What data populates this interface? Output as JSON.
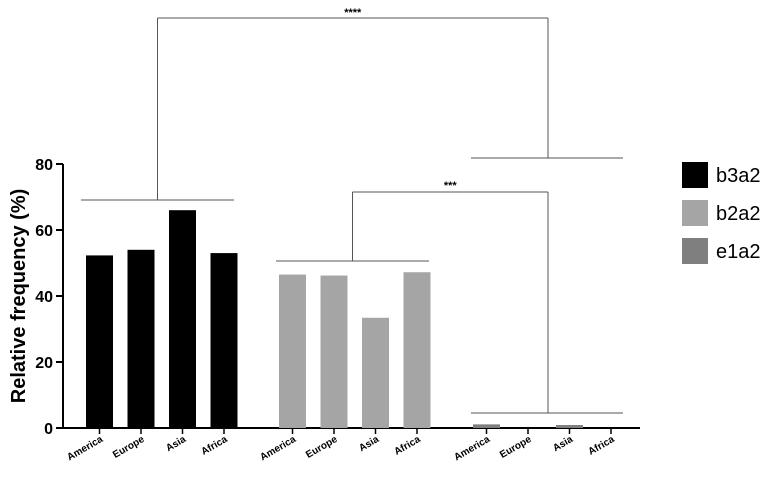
{
  "chart_data": {
    "type": "bar",
    "ylabel": "Relative frequency (%)",
    "xlabel": "",
    "ylim": [
      0,
      80
    ],
    "yticks": [
      0,
      20,
      40,
      60,
      80
    ],
    "categories": [
      "America",
      "Europe",
      "Asia",
      "Africa"
    ],
    "series": [
      {
        "name": "b3a2",
        "color": "#000000",
        "values": [
          52.3,
          54,
          66,
          53
        ]
      },
      {
        "name": "b2a2",
        "color": "#a5a5a5",
        "values": [
          46.5,
          46.2,
          33.4,
          47.2
        ]
      },
      {
        "name": "e1a2",
        "color": "#7f7f7f",
        "values": [
          1.1,
          0,
          0.9,
          0
        ]
      }
    ],
    "legend_position": "right",
    "grid": false,
    "significance": [
      {
        "label": "****",
        "between": [
          "b3a2",
          "b2a2 + e1a2"
        ]
      },
      {
        "label": "***",
        "between": [
          "b2a2",
          "e1a2"
        ]
      }
    ]
  }
}
